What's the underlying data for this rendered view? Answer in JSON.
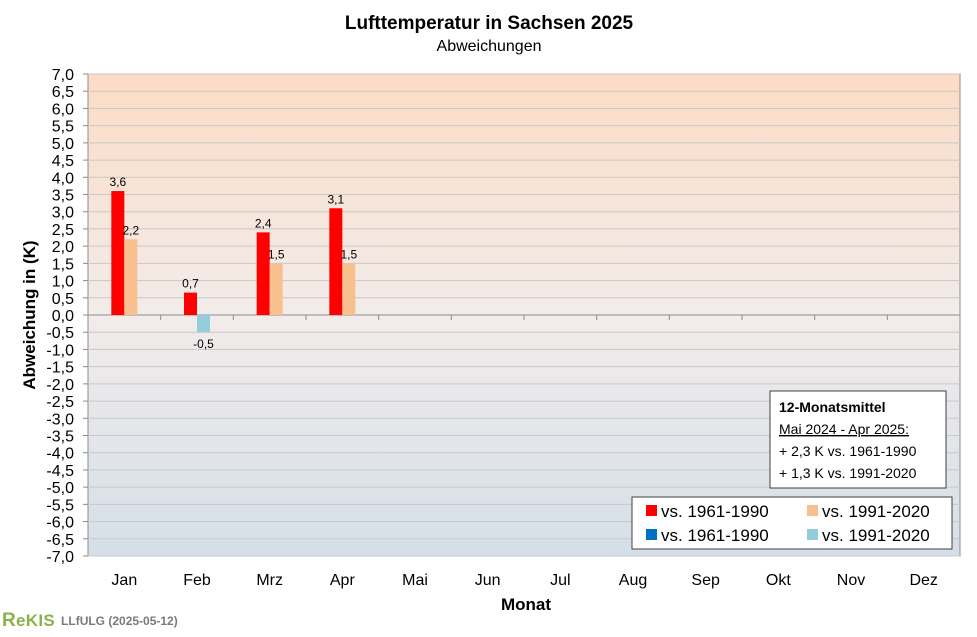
{
  "chart_data": {
    "type": "bar",
    "title": "Lufttemperatur  in Sachsen 2025",
    "subtitle": "Abweichungen",
    "xlabel": "Monat",
    "ylabel": "Abweichung in (K)",
    "ylim": [
      -7.0,
      7.0
    ],
    "ytick_step": 0.5,
    "ytick_labels": [
      "7,0",
      "6,5",
      "6,0",
      "5,5",
      "5,0",
      "4,5",
      "4,0",
      "3,5",
      "3,0",
      "2,5",
      "2,0",
      "1,5",
      "1,0",
      "0,5",
      "0,0",
      "-0,5",
      "-1,0",
      "-1,5",
      "-2,0",
      "-2,5",
      "-3,0",
      "-3,5",
      "-4,0",
      "-4,5",
      "-5,0",
      "-5,5",
      "-6,0",
      "-6,5",
      "-7,0"
    ],
    "categories": [
      "Jan",
      "Feb",
      "Mrz",
      "Apr",
      "Mai",
      "Jun",
      "Jul",
      "Aug",
      "Sep",
      "Okt",
      "Nov",
      "Dez"
    ],
    "series": [
      {
        "name": "vs. 1961-1990",
        "values": [
          3.6,
          0.65,
          2.4,
          3.1,
          null,
          null,
          null,
          null,
          null,
          null,
          null,
          null
        ],
        "color_pos": "#ff0000",
        "color_neg": "#0070c0"
      },
      {
        "name": "vs. 1991-2020",
        "values": [
          2.2,
          -0.5,
          1.5,
          1.5,
          null,
          null,
          null,
          null,
          null,
          null,
          null,
          null
        ],
        "color_pos": "#f9c08f",
        "color_neg": "#92cddc"
      }
    ],
    "data_labels": [
      [
        "3,6",
        "0,7",
        "2,4",
        "3,1",
        "",
        "",
        "",
        "",
        "",
        "",
        "",
        ""
      ],
      [
        "2,2",
        "-0,5",
        "1,5",
        "1,5",
        "",
        "",
        "",
        "",
        "",
        "",
        "",
        ""
      ]
    ],
    "legend": {
      "placement": "bottom-right",
      "entries": [
        {
          "label": "vs. 1961-1990",
          "color": "#ff0000"
        },
        {
          "label": "vs. 1991-2020",
          "color": "#f9c08f"
        },
        {
          "label": "vs. 1961-1990",
          "color": "#0070c0"
        },
        {
          "label": "vs. 1991-2020",
          "color": "#92cddc"
        }
      ]
    },
    "info_box": {
      "title": "12-Monatsmittel",
      "period": "Mai 2024 - Apr 2025:",
      "lines": [
        "+ 2,3 K vs. 1961-1990",
        "+ 1,3 K vs. 1991-2020"
      ]
    },
    "grid": true,
    "colors": {
      "plot_top": "#fcdcc5",
      "plot_mid": "#f2ecea",
      "plot_bottom": "#d5dfe9",
      "gridline": "#c8c8c8",
      "axis": "#7f7f7f"
    }
  },
  "footer": {
    "logo_initial": "R",
    "logo_rest": "eKIS",
    "org": "LLfULG (2025-05-12)",
    "logo_color": "#8bb24a"
  }
}
